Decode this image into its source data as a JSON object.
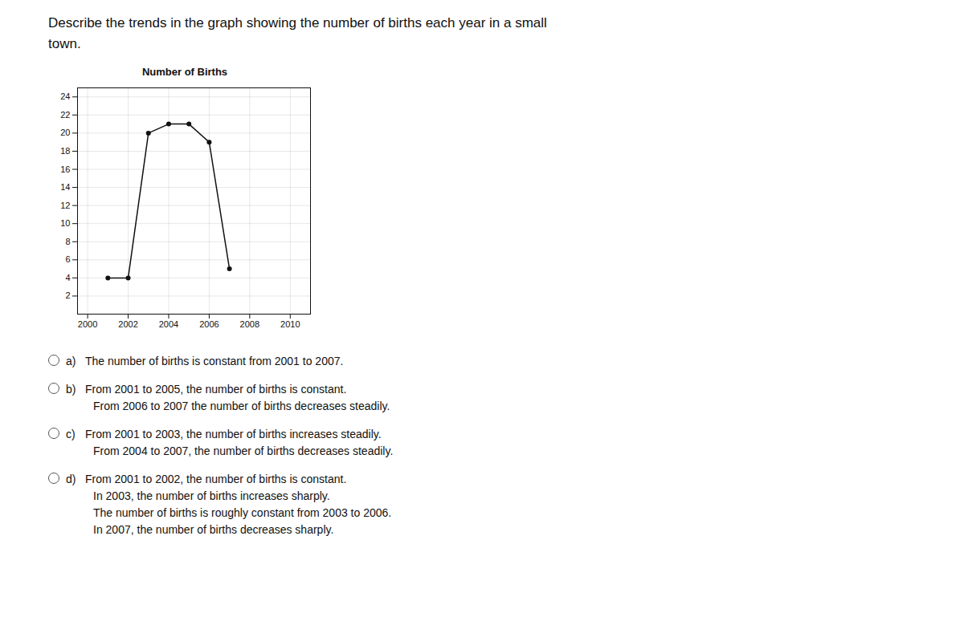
{
  "chart_data": {
    "type": "line",
    "title": "Number of Births",
    "subtitle": [
      "Describe the trends in the graph showing the number of births each year in a small",
      "town."
    ],
    "x": [
      2001,
      2002,
      2003,
      2004,
      2005,
      2006,
      2007
    ],
    "values": [
      4,
      4,
      20,
      21,
      21,
      19,
      5
    ],
    "xlim": [
      1999.5,
      2011
    ],
    "ylim": [
      0,
      25
    ],
    "xticks": [
      2000,
      2002,
      2004,
      2006,
      2008,
      2010
    ],
    "yticks": [
      2,
      4,
      6,
      8,
      10,
      12,
      14,
      16,
      18,
      20,
      22,
      24
    ],
    "grid": true,
    "marker": "circle",
    "annotations": [
      {
        "label": "a)",
        "lines": [
          "The number of births is constant from 2001 to 2007."
        ]
      },
      {
        "label": "b)",
        "lines": [
          "From 2001 to 2005, the number of births is constant.",
          "From 2006 to 2007 the number of births decreases steadily."
        ]
      },
      {
        "label": "c)",
        "lines": [
          "From 2001 to 2003, the number of births increases steadily.",
          "From 2004 to 2007, the number of births decreases steadily."
        ]
      },
      {
        "label": "d)",
        "lines": [
          "From 2001 to 2002, the number of births is constant.",
          "In 2003, the number of births increases sharply.",
          "The number of births is roughly constant from 2003 to 2006.",
          "In 2007, the number of births decreases sharply."
        ]
      }
    ]
  }
}
